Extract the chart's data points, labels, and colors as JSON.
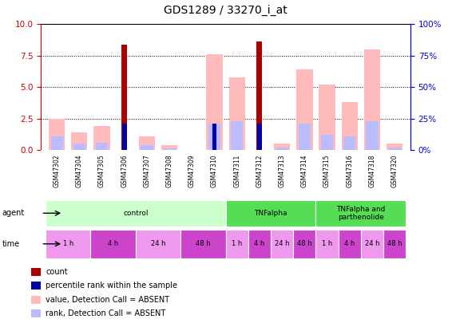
{
  "title": "GDS1289 / 33270_i_at",
  "samples": [
    "GSM47302",
    "GSM47304",
    "GSM47305",
    "GSM47306",
    "GSM47307",
    "GSM47308",
    "GSM47309",
    "GSM47310",
    "GSM47311",
    "GSM47312",
    "GSM47313",
    "GSM47314",
    "GSM47315",
    "GSM47316",
    "GSM47318",
    "GSM47320"
  ],
  "count_values": [
    0,
    0,
    0,
    8.4,
    0,
    0,
    0,
    0,
    0,
    8.6,
    0,
    0,
    0,
    0,
    0,
    0
  ],
  "percentile_values": [
    0,
    0,
    0,
    2.1,
    0,
    0,
    0,
    2.1,
    0,
    2.1,
    0,
    0,
    0,
    0,
    0,
    0
  ],
  "value_absent": [
    2.5,
    1.4,
    1.9,
    0,
    1.1,
    0.4,
    0,
    7.6,
    5.8,
    0,
    0.5,
    6.4,
    5.2,
    3.8,
    8.0,
    0.5
  ],
  "rank_absent": [
    1.1,
    0.5,
    0.6,
    0,
    0.4,
    0.15,
    0,
    2.1,
    2.3,
    0,
    0.2,
    2.1,
    1.2,
    1.1,
    2.3,
    0.2
  ],
  "ylim_left": [
    0,
    10
  ],
  "ylim_right": [
    0,
    100
  ],
  "yticks_left": [
    0,
    2.5,
    5.0,
    7.5,
    10
  ],
  "yticks_right": [
    0,
    25,
    50,
    75,
    100
  ],
  "color_count": "#aa0000",
  "color_percentile": "#0000aa",
  "color_value_absent": "#ffbbbb",
  "color_rank_absent": "#bbbbff",
  "agent_group_data": [
    {
      "label": "control",
      "start": 0,
      "end": 8,
      "color": "#ccffcc"
    },
    {
      "label": "TNFalpha",
      "start": 8,
      "end": 12,
      "color": "#55dd55"
    },
    {
      "label": "TNFalpha and\nparthenolide",
      "start": 12,
      "end": 16,
      "color": "#55dd55"
    }
  ],
  "time_group_data": [
    {
      "label": "1 h",
      "start": 0,
      "end": 2,
      "color": "#ee99ee"
    },
    {
      "label": "4 h",
      "start": 2,
      "end": 4,
      "color": "#cc44cc"
    },
    {
      "label": "24 h",
      "start": 4,
      "end": 6,
      "color": "#ee99ee"
    },
    {
      "label": "48 h",
      "start": 6,
      "end": 8,
      "color": "#cc44cc"
    },
    {
      "label": "1 h",
      "start": 8,
      "end": 9,
      "color": "#ee99ee"
    },
    {
      "label": "4 h",
      "start": 9,
      "end": 10,
      "color": "#cc44cc"
    },
    {
      "label": "24 h",
      "start": 10,
      "end": 11,
      "color": "#ee99ee"
    },
    {
      "label": "48 h",
      "start": 11,
      "end": 12,
      "color": "#cc44cc"
    },
    {
      "label": "1 h",
      "start": 12,
      "end": 13,
      "color": "#ee99ee"
    },
    {
      "label": "4 h",
      "start": 13,
      "end": 14,
      "color": "#cc44cc"
    },
    {
      "label": "24 h",
      "start": 14,
      "end": 15,
      "color": "#ee99ee"
    },
    {
      "label": "48 h",
      "start": 15,
      "end": 16,
      "color": "#cc44cc"
    }
  ],
  "bar_width": 0.45,
  "bg_color": "#ffffff",
  "tick_color_left": "#cc0000",
  "tick_color_right": "#0000cc",
  "label_bg": "#cccccc",
  "legend_items": [
    {
      "color": "#aa0000",
      "label": "count"
    },
    {
      "color": "#0000aa",
      "label": "percentile rank within the sample"
    },
    {
      "color": "#ffbbbb",
      "label": "value, Detection Call = ABSENT"
    },
    {
      "color": "#bbbbff",
      "label": "rank, Detection Call = ABSENT"
    }
  ]
}
